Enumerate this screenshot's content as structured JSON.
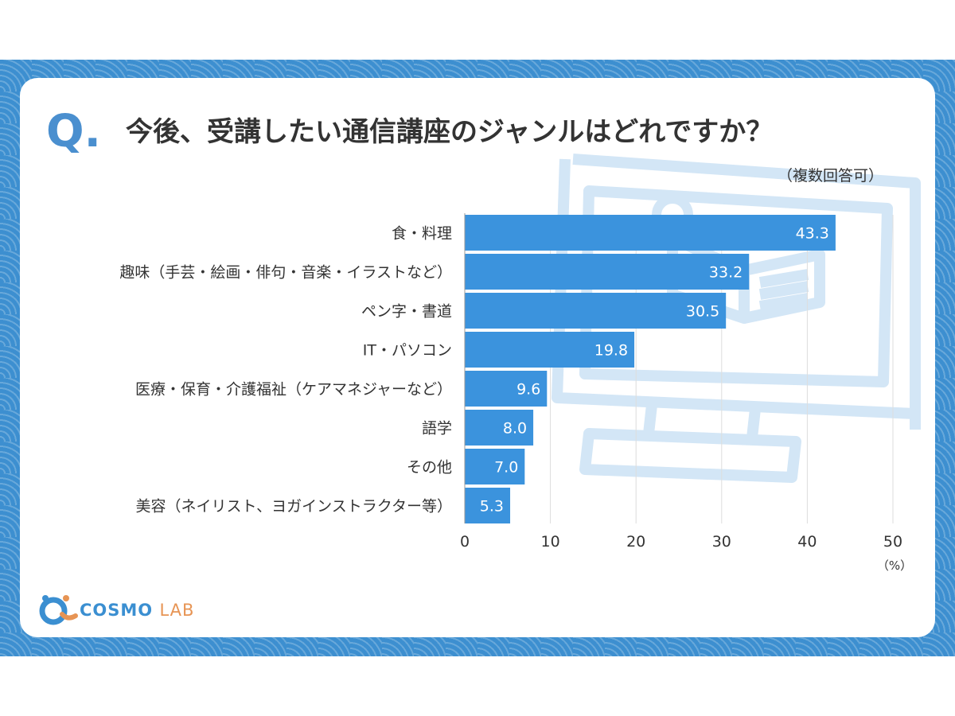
{
  "question": {
    "mark": "Q.",
    "title": "今後、受講したい通信講座のジャンルはどれですか？",
    "note": "（複数回答可）"
  },
  "brand": {
    "name_part1": "COSMO",
    "name_part2": "LAB",
    "colors": {
      "blue": "#3b8fd1",
      "orange": "#e79454"
    }
  },
  "colors": {
    "frame": "#3d8fd0",
    "bar": "#3b93dd",
    "bar_label": "#ffffff",
    "illustration": "#d3e6f6",
    "grid": "#dddddd",
    "text": "#333333"
  },
  "chart_data": {
    "type": "bar",
    "orientation": "horizontal",
    "categories": [
      "食・料理",
      "趣味（手芸・絵画・俳句・音楽・イラストなど）",
      "ペン字・書道",
      "IT・パソコン",
      "医療・保育・介護福祉（ケアマネジャーなど）",
      "語学",
      "その他",
      "美容（ネイリスト、ヨガインストラクター等）"
    ],
    "values": [
      43.3,
      33.2,
      30.5,
      19.8,
      9.6,
      8.0,
      7.0,
      5.3
    ],
    "value_labels": [
      "43.3",
      "33.2",
      "30.5",
      "19.8",
      "9.6",
      "8.0",
      "7.0",
      "5.3"
    ],
    "xlim": [
      0,
      50
    ],
    "xticks": [
      "0",
      "10",
      "20",
      "30",
      "40",
      "50"
    ],
    "xunit": "（%）",
    "grid": true,
    "legend": "none"
  }
}
